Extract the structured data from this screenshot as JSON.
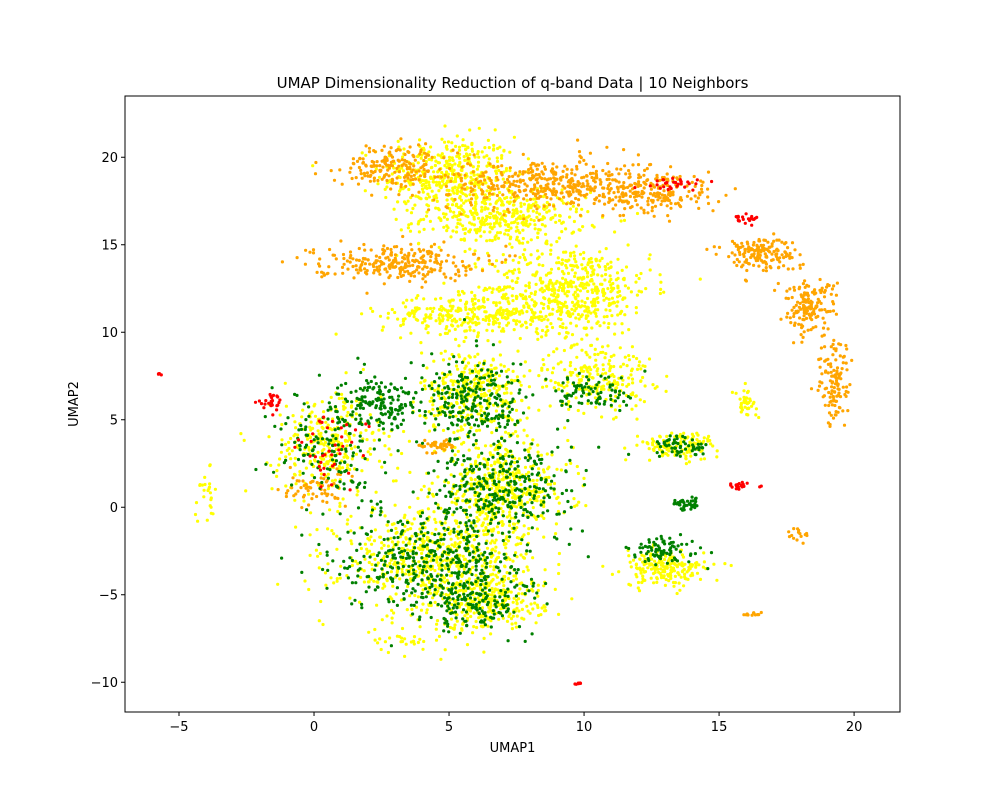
{
  "chart_data": {
    "type": "scatter",
    "title": "UMAP Dimensionality Reduction of q-band Data | 10 Neighbors",
    "xlabel": "UMAP1",
    "ylabel": "UMAP2",
    "xlim": [
      -7.0,
      21.7
    ],
    "ylim": [
      -11.7,
      23.5
    ],
    "xticks": [
      -5,
      0,
      5,
      10,
      15,
      20
    ],
    "yticks": [
      -10,
      -5,
      0,
      5,
      10,
      15,
      20
    ],
    "grid": false,
    "legend": "none",
    "colors": {
      "green": "#008000",
      "yellow": "#ffff00",
      "orange": "#ffa500",
      "red": "#ff0000"
    },
    "clusters": [
      {
        "color": "orange",
        "cx": 3.0,
        "cy": 19.5,
        "rx": 2.0,
        "ry": 1.2,
        "n": 180
      },
      {
        "color": "yellow",
        "cx": 5.0,
        "cy": 19.0,
        "rx": 2.5,
        "ry": 2.2,
        "n": 420
      },
      {
        "color": "orange",
        "cx": 8.5,
        "cy": 18.5,
        "rx": 3.5,
        "ry": 1.5,
        "n": 380
      },
      {
        "color": "orange",
        "cx": 12.5,
        "cy": 18.0,
        "rx": 2.5,
        "ry": 1.4,
        "n": 220
      },
      {
        "color": "yellow",
        "cx": 7.0,
        "cy": 16.5,
        "rx": 3.0,
        "ry": 1.5,
        "n": 380
      },
      {
        "color": "orange",
        "cx": 3.0,
        "cy": 14.0,
        "rx": 3.0,
        "ry": 1.0,
        "n": 260
      },
      {
        "color": "yellow",
        "cx": 9.5,
        "cy": 12.5,
        "rx": 3.0,
        "ry": 2.5,
        "n": 520
      },
      {
        "color": "yellow",
        "cx": 6.0,
        "cy": 11.0,
        "rx": 3.5,
        "ry": 1.2,
        "n": 320
      },
      {
        "color": "orange",
        "cx": 16.5,
        "cy": 14.5,
        "rx": 1.4,
        "ry": 1.0,
        "n": 160
      },
      {
        "color": "orange",
        "cx": 18.3,
        "cy": 11.5,
        "rx": 1.0,
        "ry": 1.5,
        "n": 150
      },
      {
        "color": "orange",
        "cx": 19.3,
        "cy": 7.0,
        "rx": 0.6,
        "ry": 2.5,
        "n": 120
      },
      {
        "color": "yellow",
        "cx": 10.5,
        "cy": 7.5,
        "rx": 2.0,
        "ry": 2.0,
        "n": 220
      },
      {
        "color": "green",
        "cx": 10.5,
        "cy": 6.5,
        "rx": 1.5,
        "ry": 1.2,
        "n": 80
      },
      {
        "color": "yellow",
        "cx": 6.0,
        "cy": 6.5,
        "rx": 2.0,
        "ry": 2.5,
        "n": 360
      },
      {
        "color": "green",
        "cx": 6.0,
        "cy": 6.0,
        "rx": 2.0,
        "ry": 2.5,
        "n": 240
      },
      {
        "color": "green",
        "cx": 2.5,
        "cy": 6.0,
        "rx": 1.5,
        "ry": 1.5,
        "n": 160
      },
      {
        "color": "yellow",
        "cx": 0.5,
        "cy": 3.5,
        "rx": 2.0,
        "ry": 3.0,
        "n": 300
      },
      {
        "color": "green",
        "cx": 0.5,
        "cy": 3.5,
        "rx": 2.0,
        "ry": 3.0,
        "n": 150
      },
      {
        "color": "yellow",
        "cx": 7.0,
        "cy": 1.0,
        "rx": 2.5,
        "ry": 2.5,
        "n": 480
      },
      {
        "color": "green",
        "cx": 7.0,
        "cy": 1.0,
        "rx": 2.5,
        "ry": 2.5,
        "n": 300
      },
      {
        "color": "yellow",
        "cx": 4.5,
        "cy": -3.0,
        "rx": 3.5,
        "ry": 3.0,
        "n": 650
      },
      {
        "color": "green",
        "cx": 4.5,
        "cy": -3.0,
        "rx": 3.5,
        "ry": 3.0,
        "n": 420
      },
      {
        "color": "yellow",
        "cx": 6.5,
        "cy": -5.5,
        "rx": 2.0,
        "ry": 1.5,
        "n": 260
      },
      {
        "color": "green",
        "cx": 6.0,
        "cy": -5.5,
        "rx": 2.0,
        "ry": 1.5,
        "n": 130
      },
      {
        "color": "yellow",
        "cx": 13.0,
        "cy": -3.5,
        "rx": 1.5,
        "ry": 1.0,
        "n": 200
      },
      {
        "color": "green",
        "cx": 13.0,
        "cy": -2.5,
        "rx": 1.3,
        "ry": 0.8,
        "n": 80
      },
      {
        "color": "yellow",
        "cx": 13.5,
        "cy": 3.5,
        "rx": 1.5,
        "ry": 0.8,
        "n": 120
      },
      {
        "color": "green",
        "cx": 13.5,
        "cy": 3.5,
        "rx": 1.2,
        "ry": 0.6,
        "n": 60
      },
      {
        "color": "green",
        "cx": 13.8,
        "cy": 0.2,
        "rx": 0.5,
        "ry": 0.4,
        "n": 40
      },
      {
        "color": "yellow",
        "cx": 16.0,
        "cy": 6.0,
        "rx": 0.4,
        "ry": 0.7,
        "n": 40
      },
      {
        "color": "orange",
        "cx": 4.5,
        "cy": 3.5,
        "rx": 0.7,
        "ry": 0.4,
        "n": 40
      },
      {
        "color": "red",
        "cx": 13.5,
        "cy": 18.5,
        "rx": 1.0,
        "ry": 0.3,
        "n": 30
      },
      {
        "color": "red",
        "cx": 16.0,
        "cy": 16.5,
        "rx": 0.5,
        "ry": 0.3,
        "n": 20
      },
      {
        "color": "red",
        "cx": -1.5,
        "cy": 6.0,
        "rx": 0.6,
        "ry": 0.5,
        "n": 25
      },
      {
        "color": "red",
        "cx": 15.8,
        "cy": 1.2,
        "rx": 0.5,
        "ry": 0.2,
        "n": 20
      },
      {
        "color": "red",
        "cx": 9.8,
        "cy": -10.1,
        "rx": 0.1,
        "ry": 0.1,
        "n": 6
      },
      {
        "color": "red",
        "cx": 0.5,
        "cy": 3.0,
        "rx": 1.5,
        "ry": 2.5,
        "n": 40
      },
      {
        "color": "orange",
        "cx": 0.0,
        "cy": 1.0,
        "rx": 1.2,
        "ry": 1.0,
        "n": 60
      },
      {
        "color": "orange",
        "cx": 16.2,
        "cy": -6.1,
        "rx": 0.4,
        "ry": 0.1,
        "n": 12
      },
      {
        "color": "orange",
        "cx": 18.0,
        "cy": -1.5,
        "rx": 0.4,
        "ry": 0.5,
        "n": 15
      },
      {
        "color": "yellow",
        "cx": -4.0,
        "cy": 0.5,
        "rx": 0.4,
        "ry": 1.5,
        "n": 25
      },
      {
        "color": "red",
        "cx": -5.7,
        "cy": 7.6,
        "rx": 0.1,
        "ry": 0.1,
        "n": 5
      },
      {
        "color": "yellow",
        "cx": 3.5,
        "cy": -7.5,
        "rx": 1.5,
        "ry": 0.8,
        "n": 30
      }
    ]
  }
}
